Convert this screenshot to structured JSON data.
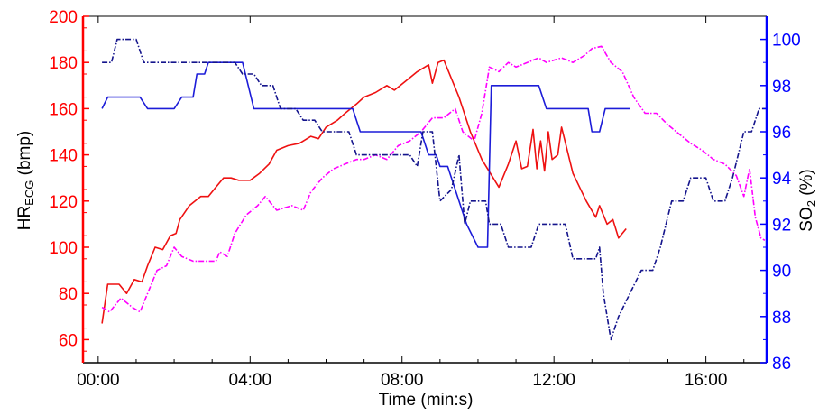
{
  "chart_data": {
    "type": "line",
    "xlabel": "Time (min:s)",
    "ylabel_left": {
      "main": "HR",
      "sub": "ECG",
      "tail": " (bmp)"
    },
    "ylabel_right": {
      "main": "SO",
      "sub": "2",
      "tail": " (%)"
    },
    "xlim": [
      -0.4,
      17.6
    ],
    "ylim_left": [
      50,
      200
    ],
    "ylim_right": [
      86,
      101
    ],
    "x_ticks": [
      0,
      4,
      8,
      12,
      16
    ],
    "x_tick_labels": [
      "00:00",
      "04:00",
      "08:00",
      "12:00",
      "16:00"
    ],
    "y_left_ticks": [
      60,
      80,
      100,
      120,
      140,
      160,
      180,
      200
    ],
    "y_right_ticks": [
      86,
      88,
      90,
      92,
      94,
      96,
      98,
      100
    ],
    "colors": {
      "left_axis": "#ff0000",
      "right_axis": "#0000ff",
      "bottom_axis": "#000000"
    },
    "series": [
      {
        "axis": "left",
        "color": "#ee1111",
        "style": "solid",
        "points": [
          [
            0.1,
            67
          ],
          [
            0.25,
            84
          ],
          [
            0.55,
            84
          ],
          [
            0.75,
            80
          ],
          [
            0.95,
            86
          ],
          [
            1.15,
            85
          ],
          [
            1.3,
            92
          ],
          [
            1.5,
            100
          ],
          [
            1.7,
            99
          ],
          [
            1.9,
            105
          ],
          [
            2.05,
            106
          ],
          [
            2.15,
            112
          ],
          [
            2.4,
            118
          ],
          [
            2.7,
            122
          ],
          [
            2.9,
            122
          ],
          [
            3.1,
            126
          ],
          [
            3.3,
            130
          ],
          [
            3.5,
            130
          ],
          [
            3.7,
            129
          ],
          [
            4.0,
            129
          ],
          [
            4.25,
            132
          ],
          [
            4.5,
            136
          ],
          [
            4.7,
            142
          ],
          [
            5.0,
            144
          ],
          [
            5.3,
            145
          ],
          [
            5.6,
            148
          ],
          [
            5.8,
            147
          ],
          [
            6.0,
            152
          ],
          [
            6.3,
            155
          ],
          [
            6.5,
            158
          ],
          [
            6.8,
            162
          ],
          [
            7.0,
            165
          ],
          [
            7.3,
            167
          ],
          [
            7.6,
            170
          ],
          [
            7.8,
            168
          ],
          [
            8.1,
            172
          ],
          [
            8.4,
            176
          ],
          [
            8.7,
            179
          ],
          [
            8.8,
            171
          ],
          [
            8.95,
            180
          ],
          [
            9.1,
            181
          ],
          [
            9.5,
            165
          ],
          [
            9.8,
            150
          ],
          [
            10.1,
            138
          ],
          [
            10.4,
            130
          ],
          [
            10.55,
            126
          ],
          [
            10.8,
            136
          ],
          [
            11.0,
            146
          ],
          [
            11.15,
            134
          ],
          [
            11.3,
            135
          ],
          [
            11.45,
            151
          ],
          [
            11.55,
            134
          ],
          [
            11.65,
            146
          ],
          [
            11.75,
            133
          ],
          [
            11.85,
            150
          ],
          [
            11.95,
            138
          ],
          [
            12.1,
            140
          ],
          [
            12.2,
            152
          ],
          [
            12.5,
            132
          ],
          [
            12.85,
            120
          ],
          [
            13.1,
            113
          ],
          [
            13.2,
            118
          ],
          [
            13.4,
            110
          ],
          [
            13.55,
            112
          ],
          [
            13.7,
            104
          ],
          [
            13.9,
            108
          ]
        ]
      },
      {
        "axis": "left",
        "color": "#ff00ff",
        "style": "dashdot",
        "points": [
          [
            0.1,
            74
          ],
          [
            0.3,
            72
          ],
          [
            0.6,
            78
          ],
          [
            0.9,
            74
          ],
          [
            1.1,
            72
          ],
          [
            1.3,
            80
          ],
          [
            1.55,
            90
          ],
          [
            1.8,
            92
          ],
          [
            2.0,
            100
          ],
          [
            2.2,
            96
          ],
          [
            2.5,
            94
          ],
          [
            2.8,
            94
          ],
          [
            3.1,
            94
          ],
          [
            3.2,
            98
          ],
          [
            3.4,
            96
          ],
          [
            3.6,
            106
          ],
          [
            3.9,
            114
          ],
          [
            4.2,
            118
          ],
          [
            4.4,
            122
          ],
          [
            4.7,
            116
          ],
          [
            5.1,
            118
          ],
          [
            5.4,
            116
          ],
          [
            5.6,
            124
          ],
          [
            5.9,
            130
          ],
          [
            6.2,
            134
          ],
          [
            6.5,
            136
          ],
          [
            6.8,
            138
          ],
          [
            7.0,
            138
          ],
          [
            7.3,
            140
          ],
          [
            7.6,
            138
          ],
          [
            7.9,
            144
          ],
          [
            8.2,
            146
          ],
          [
            8.5,
            150
          ],
          [
            8.8,
            156
          ],
          [
            9.1,
            156
          ],
          [
            9.4,
            160
          ],
          [
            9.6,
            150
          ],
          [
            9.9,
            146
          ],
          [
            10.1,
            158
          ],
          [
            10.3,
            178
          ],
          [
            10.55,
            176
          ],
          [
            10.8,
            180
          ],
          [
            11.0,
            178
          ],
          [
            11.3,
            180
          ],
          [
            11.6,
            182
          ],
          [
            11.8,
            180
          ],
          [
            12.0,
            181
          ],
          [
            12.2,
            182
          ],
          [
            12.5,
            180
          ],
          [
            12.8,
            183
          ],
          [
            13.0,
            186
          ],
          [
            13.25,
            187
          ],
          [
            13.5,
            180
          ],
          [
            13.8,
            176
          ],
          [
            14.1,
            165
          ],
          [
            14.4,
            158
          ],
          [
            14.7,
            158
          ],
          [
            15.0,
            153
          ],
          [
            15.3,
            149
          ],
          [
            15.6,
            145
          ],
          [
            15.9,
            142
          ],
          [
            16.2,
            138
          ],
          [
            16.5,
            136
          ],
          [
            16.8,
            131
          ],
          [
            17.0,
            122
          ],
          [
            17.15,
            134
          ],
          [
            17.3,
            113
          ],
          [
            17.45,
            104
          ],
          [
            17.55,
            103
          ]
        ]
      },
      {
        "axis": "right",
        "color": "#1c1cd8",
        "style": "solid",
        "points": [
          [
            0.1,
            97
          ],
          [
            0.25,
            97.5
          ],
          [
            1.1,
            97.5
          ],
          [
            1.3,
            97
          ],
          [
            2.0,
            97
          ],
          [
            2.2,
            97.5
          ],
          [
            2.5,
            97.5
          ],
          [
            2.6,
            98.5
          ],
          [
            2.8,
            98.5
          ],
          [
            2.9,
            99
          ],
          [
            3.8,
            99
          ],
          [
            4.1,
            97
          ],
          [
            6.7,
            97
          ],
          [
            6.9,
            96
          ],
          [
            8.5,
            96
          ],
          [
            8.7,
            95
          ],
          [
            8.9,
            95
          ],
          [
            9.0,
            94.5
          ],
          [
            9.2,
            94.5
          ],
          [
            9.5,
            93
          ],
          [
            9.7,
            92
          ],
          [
            10.0,
            91
          ],
          [
            10.25,
            91
          ],
          [
            10.35,
            98
          ],
          [
            11.6,
            98
          ],
          [
            11.8,
            97
          ],
          [
            12.9,
            97
          ],
          [
            13.0,
            96
          ],
          [
            13.2,
            96
          ],
          [
            13.35,
            97
          ],
          [
            14.0,
            97
          ]
        ]
      },
      {
        "axis": "right",
        "color": "#14148c",
        "style": "dashdot",
        "points": [
          [
            0.1,
            99
          ],
          [
            0.35,
            99
          ],
          [
            0.5,
            100
          ],
          [
            1.0,
            100
          ],
          [
            1.2,
            99
          ],
          [
            3.6,
            99
          ],
          [
            3.8,
            98.5
          ],
          [
            4.1,
            98.5
          ],
          [
            4.3,
            98
          ],
          [
            4.6,
            98
          ],
          [
            4.8,
            97
          ],
          [
            5.2,
            97
          ],
          [
            5.4,
            96.5
          ],
          [
            5.7,
            96.5
          ],
          [
            5.9,
            96
          ],
          [
            6.6,
            96
          ],
          [
            6.8,
            95
          ],
          [
            8.2,
            95
          ],
          [
            8.4,
            94.5
          ],
          [
            8.55,
            96
          ],
          [
            8.8,
            96
          ],
          [
            9.0,
            93
          ],
          [
            9.3,
            93.5
          ],
          [
            9.5,
            95
          ],
          [
            9.65,
            92
          ],
          [
            9.8,
            93
          ],
          [
            10.2,
            93
          ],
          [
            10.3,
            92
          ],
          [
            10.6,
            92
          ],
          [
            10.8,
            91
          ],
          [
            11.4,
            91
          ],
          [
            11.6,
            92
          ],
          [
            12.3,
            92
          ],
          [
            12.5,
            90.5
          ],
          [
            13.1,
            90.5
          ],
          [
            13.2,
            91
          ],
          [
            13.3,
            89
          ],
          [
            13.5,
            87
          ],
          [
            13.7,
            88
          ],
          [
            14.0,
            89
          ],
          [
            14.3,
            90
          ],
          [
            14.6,
            90
          ],
          [
            14.8,
            91
          ],
          [
            15.1,
            93
          ],
          [
            15.4,
            93
          ],
          [
            15.6,
            94
          ],
          [
            16.0,
            94
          ],
          [
            16.2,
            93
          ],
          [
            16.5,
            93
          ],
          [
            16.7,
            94
          ],
          [
            17.0,
            96
          ],
          [
            17.2,
            96
          ],
          [
            17.4,
            97
          ],
          [
            17.6,
            97
          ]
        ]
      }
    ]
  }
}
